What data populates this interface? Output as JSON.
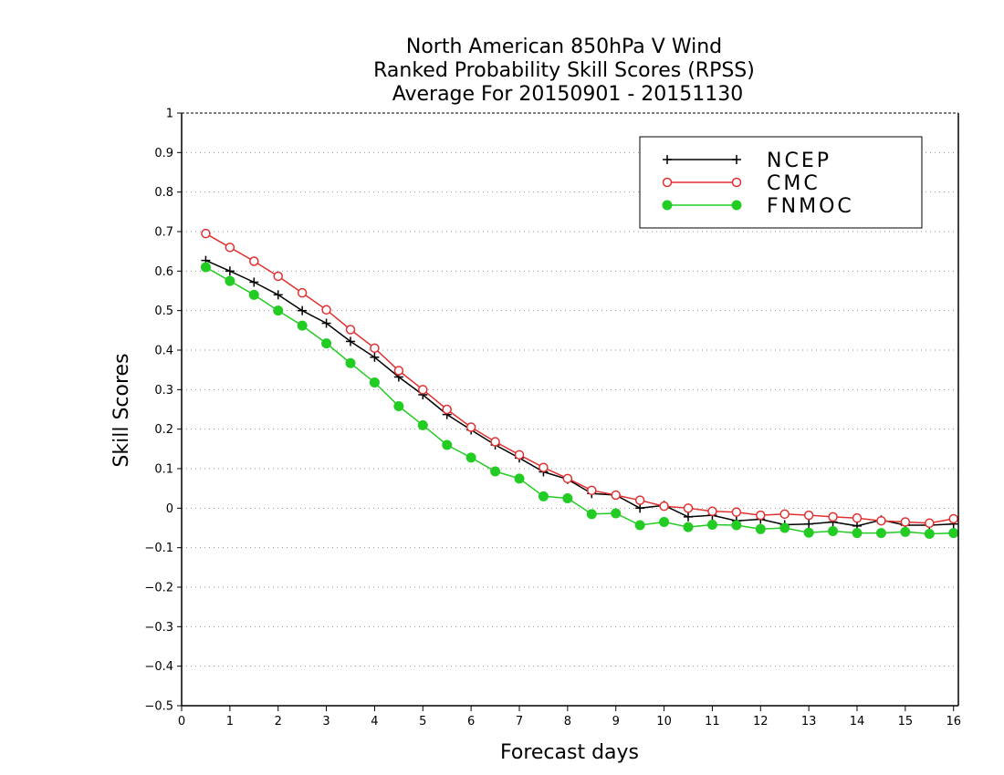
{
  "chart_data": {
    "type": "line",
    "title": [
      "North American 850hPa V Wind",
      "Ranked Probability Skill Scores (RPSS)",
      "Average For 20150901 - 20151130"
    ],
    "xlabel": "Forecast days",
    "ylabel": "Skill Scores",
    "xlim": [
      0,
      16.1
    ],
    "ylim": [
      -0.5,
      1
    ],
    "xticks": [
      "0",
      "1",
      "2",
      "3",
      "4",
      "5",
      "6",
      "7",
      "8",
      "9",
      "10",
      "11",
      "12",
      "13",
      "14",
      "15",
      "16"
    ],
    "yticks": [
      "1",
      "0.9",
      "0.8",
      "0.7",
      "0.6",
      "0.5",
      "0.4",
      "0.3",
      "0.2",
      "0.1",
      "0",
      "−0.1",
      "−0.2",
      "−0.3",
      "−0.4",
      "−0.5"
    ],
    "grid": "horizontal dotted",
    "legend_position": "top-right",
    "x": [
      0.5,
      1,
      1.5,
      2,
      2.5,
      3,
      3.5,
      4,
      4.5,
      5,
      5.5,
      6,
      6.5,
      7,
      7.5,
      8,
      8.5,
      9,
      9.5,
      10,
      10.5,
      11,
      11.5,
      12,
      12.5,
      13,
      13.5,
      14,
      14.5,
      15,
      15.5,
      16
    ],
    "series": [
      {
        "name": "NCEP",
        "color": "#000000",
        "marker": "plus",
        "values": [
          0.627,
          0.6,
          0.572,
          0.54,
          0.5,
          0.468,
          0.422,
          0.382,
          0.332,
          0.287,
          0.237,
          0.198,
          0.16,
          0.127,
          0.092,
          0.073,
          0.037,
          0.033,
          0.0,
          0.007,
          -0.022,
          -0.018,
          -0.032,
          -0.028,
          -0.042,
          -0.04,
          -0.035,
          -0.045,
          -0.03,
          -0.043,
          -0.043,
          -0.04
        ]
      },
      {
        "name": "CMC",
        "color": "#e03030",
        "marker": "open-circle",
        "values": [
          0.695,
          0.66,
          0.625,
          0.587,
          0.545,
          0.502,
          0.452,
          0.405,
          0.348,
          0.3,
          0.25,
          0.205,
          0.168,
          0.135,
          0.103,
          0.075,
          0.045,
          0.033,
          0.02,
          0.005,
          0.0,
          -0.008,
          -0.01,
          -0.018,
          -0.015,
          -0.018,
          -0.022,
          -0.025,
          -0.032,
          -0.035,
          -0.038,
          -0.027
        ]
      },
      {
        "name": "FNMOC",
        "color": "#22cc22",
        "marker": "filled-circle",
        "values": [
          0.61,
          0.575,
          0.54,
          0.5,
          0.462,
          0.417,
          0.367,
          0.318,
          0.258,
          0.21,
          0.16,
          0.128,
          0.093,
          0.075,
          0.03,
          0.025,
          -0.015,
          -0.013,
          -0.043,
          -0.035,
          -0.048,
          -0.042,
          -0.043,
          -0.053,
          -0.05,
          -0.062,
          -0.058,
          -0.063,
          -0.063,
          -0.06,
          -0.065,
          -0.063
        ]
      }
    ]
  }
}
